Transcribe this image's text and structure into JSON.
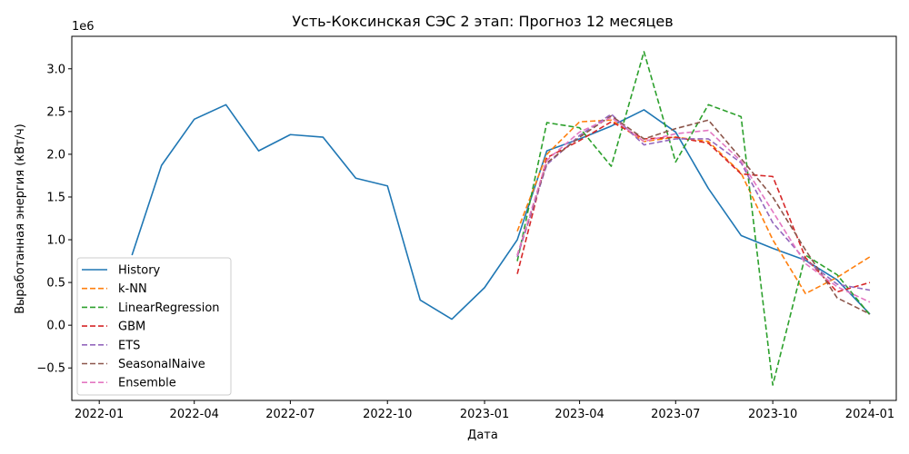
{
  "chart_data": {
    "type": "line",
    "title": "Усть-Коксинская СЭС 2 этап: Прогноз 12 месяцев",
    "xlabel": "Дата",
    "ylabel": "Выработанная энергия (кВт/ч)",
    "y_offset_label": "1e6",
    "y_scale_factor": 1000000,
    "xlim": [
      "2021-12-06",
      "2024-01-26"
    ],
    "ylim": [
      -880000,
      3380000
    ],
    "grid": false,
    "legend_position": "lower-left",
    "x_ticks": [
      "2022-01-01",
      "2022-04-01",
      "2022-07-01",
      "2022-10-01",
      "2023-01-01",
      "2023-04-01",
      "2023-07-01",
      "2023-10-01",
      "2024-01-01"
    ],
    "x_tick_labels": [
      "2022-01",
      "2022-04",
      "2022-07",
      "2022-10",
      "2023-01",
      "2023-04",
      "2023-07",
      "2023-10",
      "2024-01"
    ],
    "y_ticks": [
      -500000,
      0,
      500000,
      1000000,
      1500000,
      2000000,
      2500000,
      3000000
    ],
    "y_tick_labels": [
      "−0.5",
      "0.0",
      "0.5",
      "1.0",
      "1.5",
      "2.0",
      "2.5",
      "3.0"
    ],
    "series": [
      {
        "name": "History",
        "color": "#1f77b4",
        "dash": "solid",
        "x": [
          "2022-02-01",
          "2022-03-01",
          "2022-04-01",
          "2022-05-01",
          "2022-06-01",
          "2022-07-01",
          "2022-08-01",
          "2022-09-01",
          "2022-10-01",
          "2022-11-01",
          "2022-12-01",
          "2023-01-01",
          "2023-02-01",
          "2023-03-01",
          "2023-04-01",
          "2023-05-01",
          "2023-06-01",
          "2023-07-01",
          "2023-08-01",
          "2023-09-01",
          "2023-10-01",
          "2023-11-01",
          "2023-12-01",
          "2024-01-01"
        ],
        "y": [
          820000,
          1870000,
          2410000,
          2580000,
          2040000,
          2230000,
          2200000,
          1720000,
          1630000,
          295000,
          70000,
          440000,
          1000000,
          2040000,
          2180000,
          2330000,
          2520000,
          2260000,
          1600000,
          1050000,
          900000,
          760000,
          530000,
          130000
        ]
      },
      {
        "name": "k-NN",
        "color": "#ff7f0e",
        "dash": "dashed",
        "x": [
          "2023-02-01",
          "2023-03-01",
          "2023-04-01",
          "2023-05-01",
          "2023-06-01",
          "2023-07-01",
          "2023-08-01",
          "2023-09-01",
          "2023-10-01",
          "2023-11-01",
          "2023-12-01",
          "2024-01-01"
        ],
        "y": [
          1100000,
          2000000,
          2380000,
          2400000,
          2150000,
          2200000,
          2150000,
          1780000,
          1000000,
          370000,
          560000,
          800000
        ]
      },
      {
        "name": "LinearRegression",
        "color": "#2ca02c",
        "dash": "dashed",
        "x": [
          "2023-02-01",
          "2023-03-01",
          "2023-04-01",
          "2023-05-01",
          "2023-06-01",
          "2023-07-01",
          "2023-08-01",
          "2023-09-01",
          "2023-10-01",
          "2023-11-01",
          "2023-12-01",
          "2024-01-01"
        ],
        "y": [
          750000,
          2370000,
          2310000,
          1860000,
          3200000,
          1910000,
          2580000,
          2440000,
          -700000,
          820000,
          590000,
          120000
        ]
      },
      {
        "name": "GBM",
        "color": "#d62728",
        "dash": "dashed",
        "x": [
          "2023-02-01",
          "2023-03-01",
          "2023-04-01",
          "2023-05-01",
          "2023-06-01",
          "2023-07-01",
          "2023-08-01",
          "2023-09-01",
          "2023-10-01",
          "2023-11-01",
          "2023-12-01",
          "2024-01-01"
        ],
        "y": [
          600000,
          1960000,
          2160000,
          2380000,
          2180000,
          2200000,
          2130000,
          1770000,
          1740000,
          790000,
          390000,
          500000
        ]
      },
      {
        "name": "ETS",
        "color": "#9467bd",
        "dash": "dashed",
        "x": [
          "2023-02-01",
          "2023-03-01",
          "2023-04-01",
          "2023-05-01",
          "2023-06-01",
          "2023-07-01",
          "2023-08-01",
          "2023-09-01",
          "2023-10-01",
          "2023-11-01",
          "2023-12-01",
          "2024-01-01"
        ],
        "y": [
          800000,
          1880000,
          2220000,
          2470000,
          2110000,
          2180000,
          2180000,
          1900000,
          1200000,
          760000,
          480000,
          410000
        ]
      },
      {
        "name": "SeasonalNaive",
        "color": "#8c564b",
        "dash": "dashed",
        "x": [
          "2023-02-01",
          "2023-03-01",
          "2023-04-01",
          "2023-05-01",
          "2023-06-01",
          "2023-07-01",
          "2023-08-01",
          "2023-09-01",
          "2023-10-01",
          "2023-11-01",
          "2023-12-01",
          "2024-01-01"
        ],
        "y": [
          820000,
          1870000,
          2410000,
          2580000,
          2040000,
          2230000,
          2200000,
          1720000,
          1630000,
          295000,
          70000,
          440000
        ],
        "y_override": [
          820000,
          1900000,
          2200000,
          2450000,
          2180000,
          2300000,
          2400000,
          1950000,
          1500000,
          880000,
          320000,
          130000
        ]
      },
      {
        "name": "Ensemble",
        "color": "#e377c2",
        "dash": "dashed",
        "x": [
          "2023-02-01",
          "2023-03-01",
          "2023-04-01",
          "2023-05-01",
          "2023-06-01",
          "2023-07-01",
          "2023-08-01",
          "2023-09-01",
          "2023-10-01",
          "2023-11-01",
          "2023-12-01",
          "2024-01-01"
        ],
        "y": [
          820000,
          1930000,
          2260000,
          2430000,
          2150000,
          2240000,
          2280000,
          1920000,
          1330000,
          720000,
          450000,
          270000
        ]
      }
    ]
  }
}
